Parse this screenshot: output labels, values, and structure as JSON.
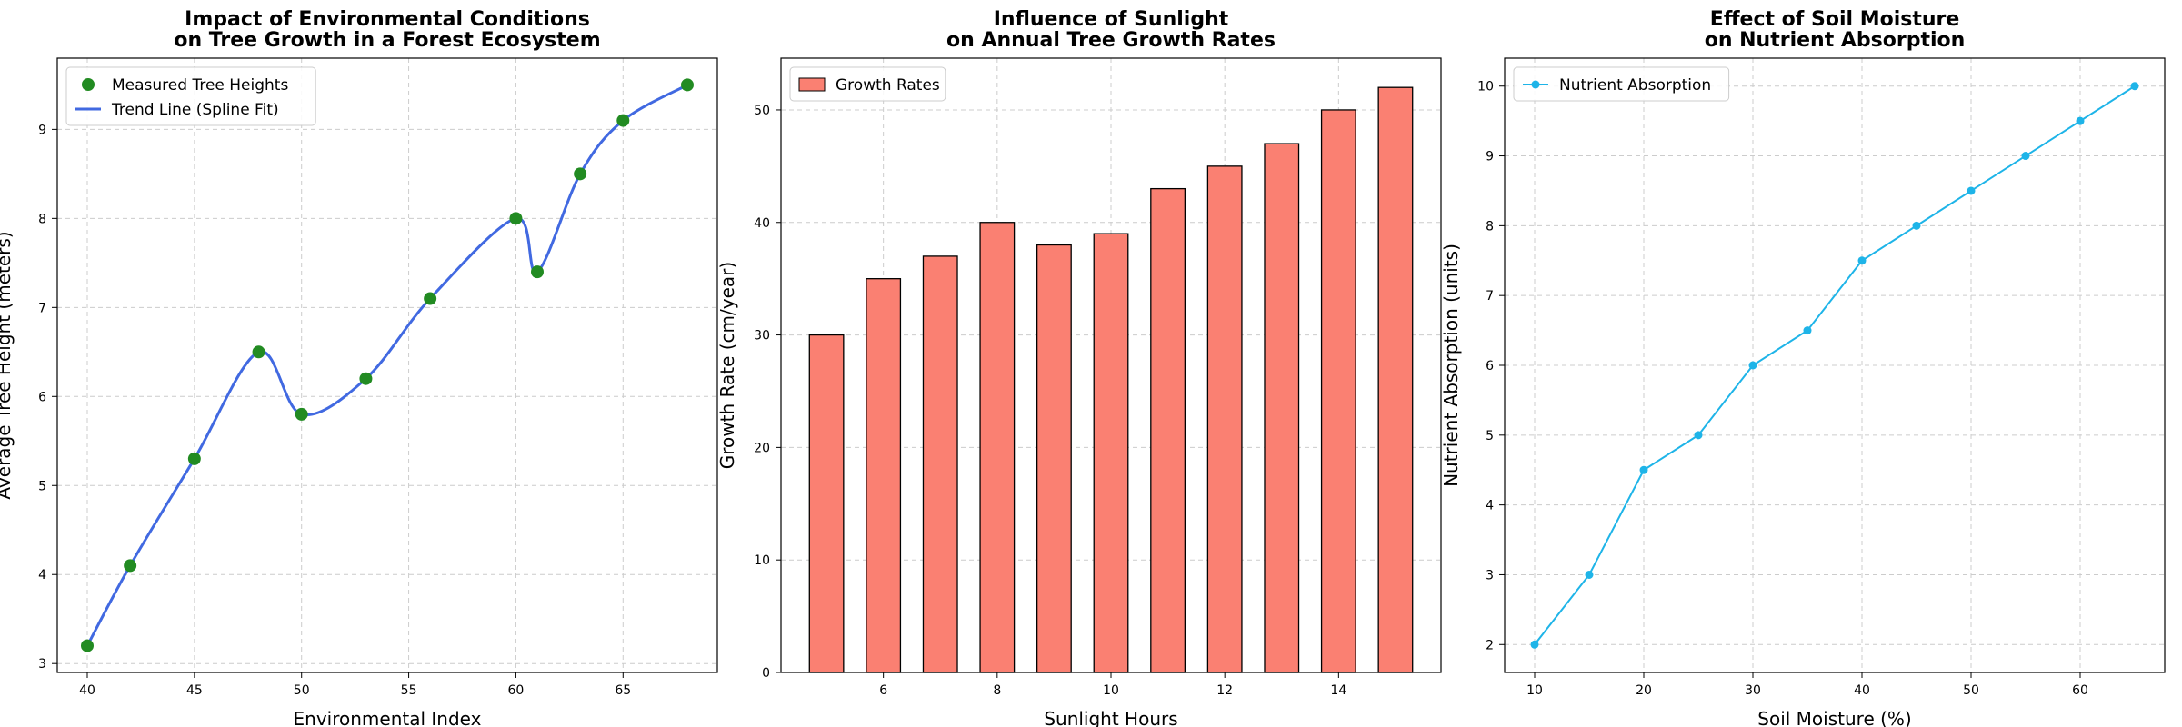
{
  "chart_data": [
    {
      "type": "scatter",
      "title": "Impact of Environmental Conditions\non Tree Growth in a Forest Ecosystem",
      "xlabel": "Environmental Index",
      "ylabel": "Average Tree Height (meters)",
      "xlim": [
        38.6,
        69.4
      ],
      "ylim": [
        2.9,
        9.8
      ],
      "xticks": [
        40,
        45,
        50,
        55,
        60,
        65
      ],
      "yticks": [
        3,
        4,
        5,
        6,
        7,
        8,
        9
      ],
      "grid": true,
      "legend": "top-left",
      "series": [
        {
          "name": "Measured Tree Heights",
          "kind": "scatter",
          "color": "#228B22",
          "x": [
            40,
            42,
            45,
            48,
            50,
            53,
            56,
            60,
            61,
            63,
            65,
            68
          ],
          "y": [
            3.2,
            4.1,
            5.3,
            6.5,
            5.8,
            6.2,
            7.1,
            8.0,
            7.4,
            8.5,
            9.1,
            9.5
          ]
        },
        {
          "name": "Trend Line (Spline Fit)",
          "kind": "spline",
          "color": "#4169E1",
          "x": [
            40,
            42,
            45,
            48,
            50,
            53,
            56,
            60,
            61,
            63,
            65,
            68
          ],
          "y": [
            3.2,
            4.1,
            5.3,
            6.5,
            5.8,
            6.2,
            7.1,
            8.0,
            7.4,
            8.5,
            9.1,
            9.5
          ]
        }
      ]
    },
    {
      "type": "bar",
      "title": "Influence of Sunlight\non Annual Tree Growth Rates",
      "xlabel": "Sunlight Hours",
      "ylabel": "Growth Rate (cm/year)",
      "xlim": [
        4.2,
        15.8
      ],
      "ylim": [
        0,
        54.6
      ],
      "xticks": [
        6,
        8,
        10,
        12,
        14
      ],
      "yticks": [
        0,
        10,
        20,
        30,
        40,
        50
      ],
      "grid": true,
      "legend": "top-left",
      "bar_width": 0.6,
      "series": [
        {
          "name": "Growth Rates",
          "color": "#FA8072",
          "edgecolor": "#000000",
          "x": [
            5,
            6,
            7,
            8,
            9,
            10,
            11,
            12,
            13,
            14,
            15
          ],
          "values": [
            30,
            35,
            37,
            40,
            38,
            39,
            43,
            45,
            47,
            50,
            52
          ]
        }
      ]
    },
    {
      "type": "line",
      "title": "Effect of Soil Moisture\non Nutrient Absorption",
      "xlabel": "Soil Moisture (%)",
      "ylabel": "Nutrient Absorption (units)",
      "xlim": [
        7.25,
        67.75
      ],
      "ylim": [
        1.6,
        10.4
      ],
      "xticks": [
        10,
        20,
        30,
        40,
        50,
        60
      ],
      "yticks": [
        2,
        3,
        4,
        5,
        6,
        7,
        8,
        9,
        10
      ],
      "grid": true,
      "legend": "top-left",
      "series": [
        {
          "name": "Nutrient Absorption",
          "color": "#1EB4E8",
          "marker": "circle",
          "x": [
            10,
            15,
            20,
            25,
            30,
            35,
            40,
            45,
            50,
            55,
            60,
            65
          ],
          "y": [
            2,
            3,
            4.5,
            5,
            6,
            6.5,
            7.5,
            8,
            8.5,
            9,
            9.5,
            10
          ]
        }
      ]
    }
  ]
}
